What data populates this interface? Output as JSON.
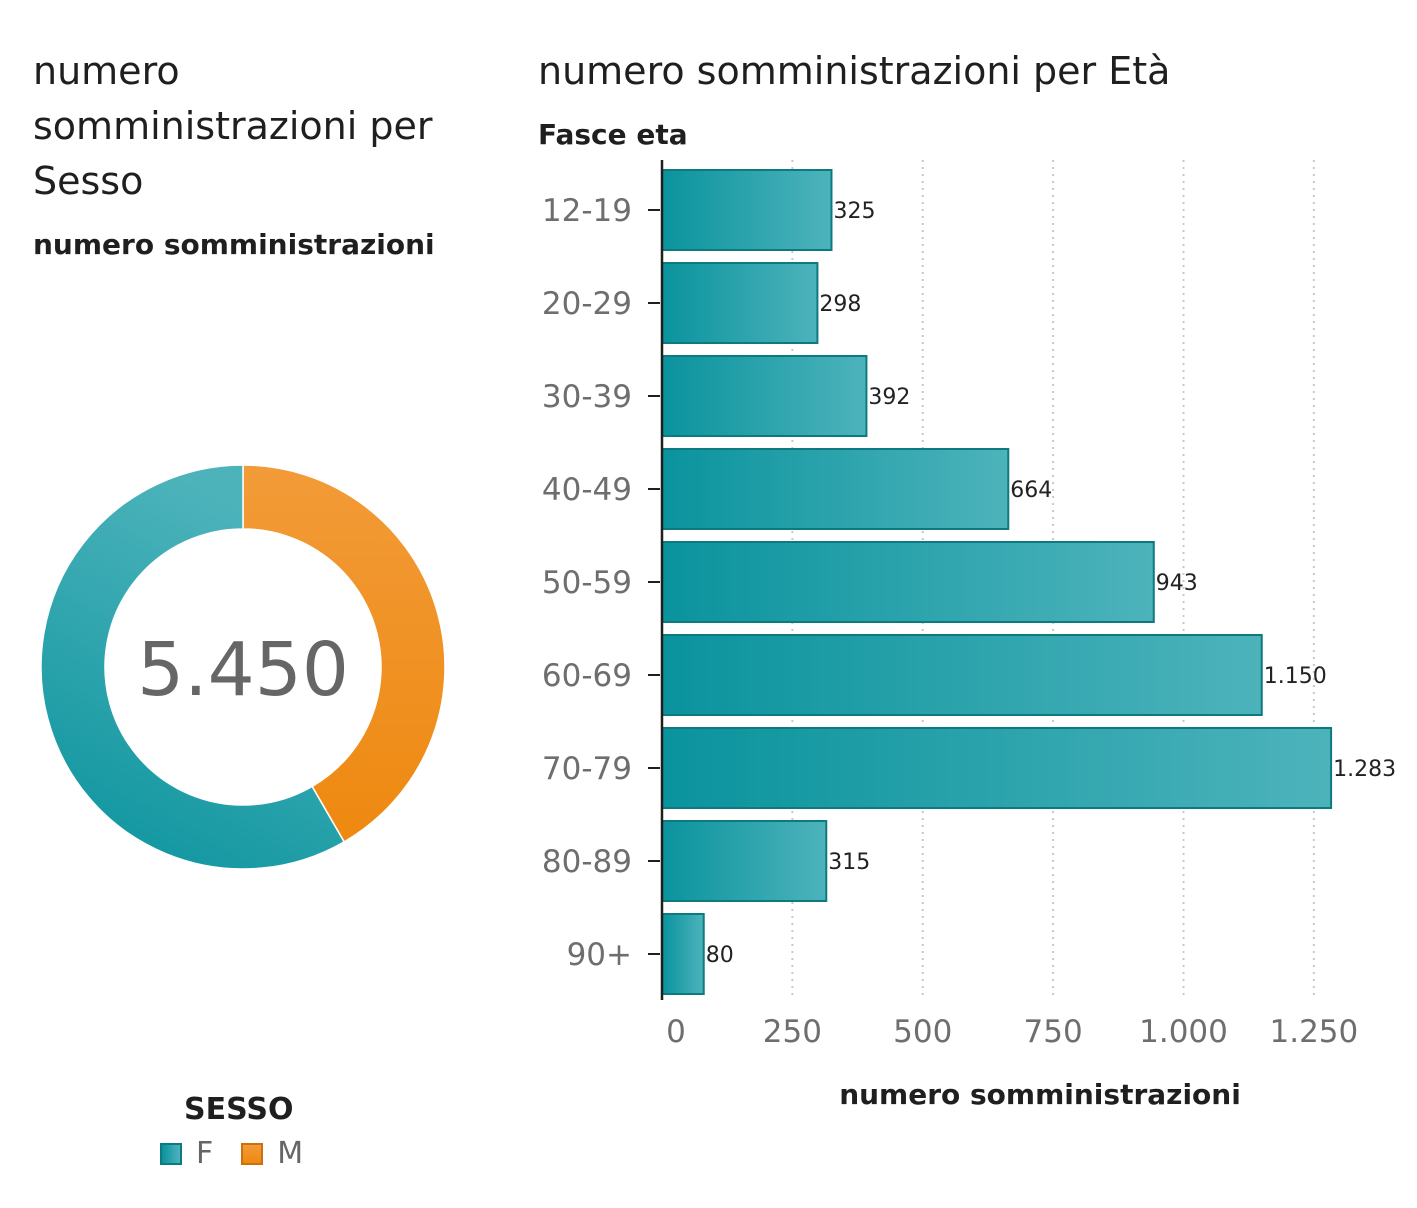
{
  "colors": {
    "F": "#1aa3aa",
    "F_dark": "#0a939d",
    "F_light": "#4db3bb",
    "F_stroke": "#0d7a80",
    "M": "#f29b38",
    "M_dark": "#ee8910",
    "M_stroke": "#cc6f10",
    "grid": "#c8c8c8",
    "axis": "#1f1f1f",
    "tick_text": "#6e6e6e",
    "center_text": "#666666"
  },
  "chart_data": [
    {
      "type": "pie",
      "title": "numero somministrazioni per Sesso",
      "subtitle": "numero somministrazioni",
      "center_label": "5.450",
      "total": 5450,
      "slices": [
        {
          "label": "F",
          "value": 3180
        },
        {
          "label": "M",
          "value": 2270
        }
      ],
      "legend_title": "SESSO",
      "legend_placement": "bottom"
    },
    {
      "type": "bar",
      "orientation": "horizontal",
      "title": "numero somministrazioni per Età",
      "ylabel": "Fasce eta",
      "xlabel": "numero somministrazioni",
      "categories": [
        "12-19",
        "20-29",
        "30-39",
        "40-49",
        "50-59",
        "60-69",
        "70-79",
        "80-89",
        "90+"
      ],
      "values": [
        325,
        298,
        392,
        664,
        943,
        1150,
        1283,
        315,
        80
      ],
      "value_labels": [
        "325",
        "298",
        "392",
        "664",
        "943",
        "1.150",
        "1.283",
        "315",
        "80"
      ],
      "x_ticks": [
        0,
        250,
        500,
        750,
        1000,
        1250
      ],
      "x_tick_labels": [
        "0",
        "250",
        "500",
        "750",
        "1.000",
        "1.250"
      ],
      "xlim": [
        0,
        1300
      ],
      "grid": "vertical-dotted"
    }
  ]
}
